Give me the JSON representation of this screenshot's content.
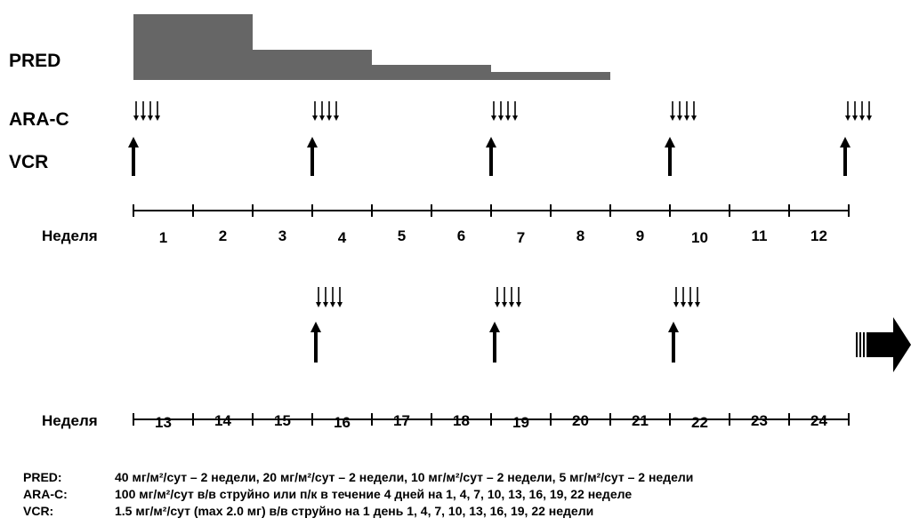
{
  "rows": {
    "pred": "PRED",
    "arac": "ARA-C",
    "vcr": "VCR"
  },
  "week_label": "Неделя",
  "timelines": [
    {
      "weeks": [
        "1",
        "2",
        "3",
        "4",
        "5",
        "6",
        "7",
        "8",
        "9",
        "10",
        "11",
        "12"
      ],
      "dose_weeks": [
        "1",
        "4",
        "7",
        "10",
        "13"
      ]
    },
    {
      "weeks": [
        "13",
        "14",
        "15",
        "16",
        "17",
        "18",
        "19",
        "20",
        "21",
        "22",
        "23",
        "24"
      ],
      "dose_weeks": [
        "16",
        "19",
        "22"
      ]
    }
  ],
  "pred_taper": [
    {
      "weeks": 2,
      "level": 40
    },
    {
      "weeks": 2,
      "level": 20
    },
    {
      "weeks": 2,
      "level": 10
    },
    {
      "weeks": 2,
      "level": 5
    }
  ],
  "continuation": "arrow-right-icon",
  "colors": {
    "bar": "#666666",
    "ink": "#000000"
  },
  "legend": [
    {
      "key": "PRED:",
      "text": "40 мг/м²/сут – 2 недели, 20 мг/м²/сут – 2 недели, 10 мг/м²/сут – 2 недели, 5 мг/м²/сут – 2 недели"
    },
    {
      "key": "ARA-C:",
      "text": "100 мг/м²/сут в/в струйно или п/к в течение 4 дней на 1, 4, 7, 10, 13, 16, 19, 22 неделе"
    },
    {
      "key": "VCR:",
      "text": "1.5 мг/м²/сут (max 2.0 мг) в/в струйно на 1 день 1, 4, 7, 10, 13, 16, 19, 22 недели"
    }
  ]
}
